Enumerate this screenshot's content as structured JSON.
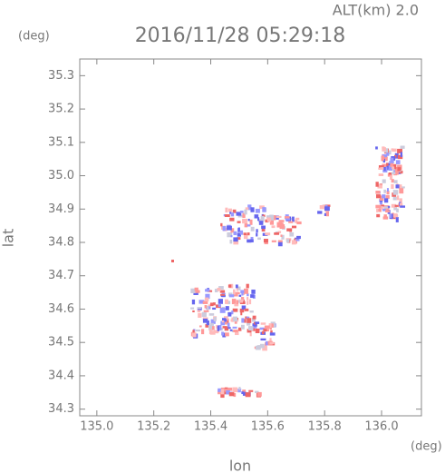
{
  "chart_data": {
    "type": "scatter",
    "title": "2016/11/28 05:29:18",
    "annotation": "ALT(km) 2.0",
    "y_unit": "(deg)",
    "x_unit": "(deg)",
    "xlabel": "lon",
    "ylabel": "lat",
    "xlim": [
      134.94,
      136.14
    ],
    "ylim": [
      34.28,
      35.35
    ],
    "xticks": [
      {
        "value": 135,
        "label": "135.0"
      },
      135.2,
      135.4,
      135.6,
      135.8,
      {
        "value": 136,
        "label": "136.0"
      }
    ],
    "yticks": [
      34.3,
      34.4,
      34.5,
      34.6,
      34.7,
      34.8,
      34.9,
      {
        "value": 35,
        "label": "35.0"
      },
      35.1,
      35.2,
      35.3
    ]
  }
}
